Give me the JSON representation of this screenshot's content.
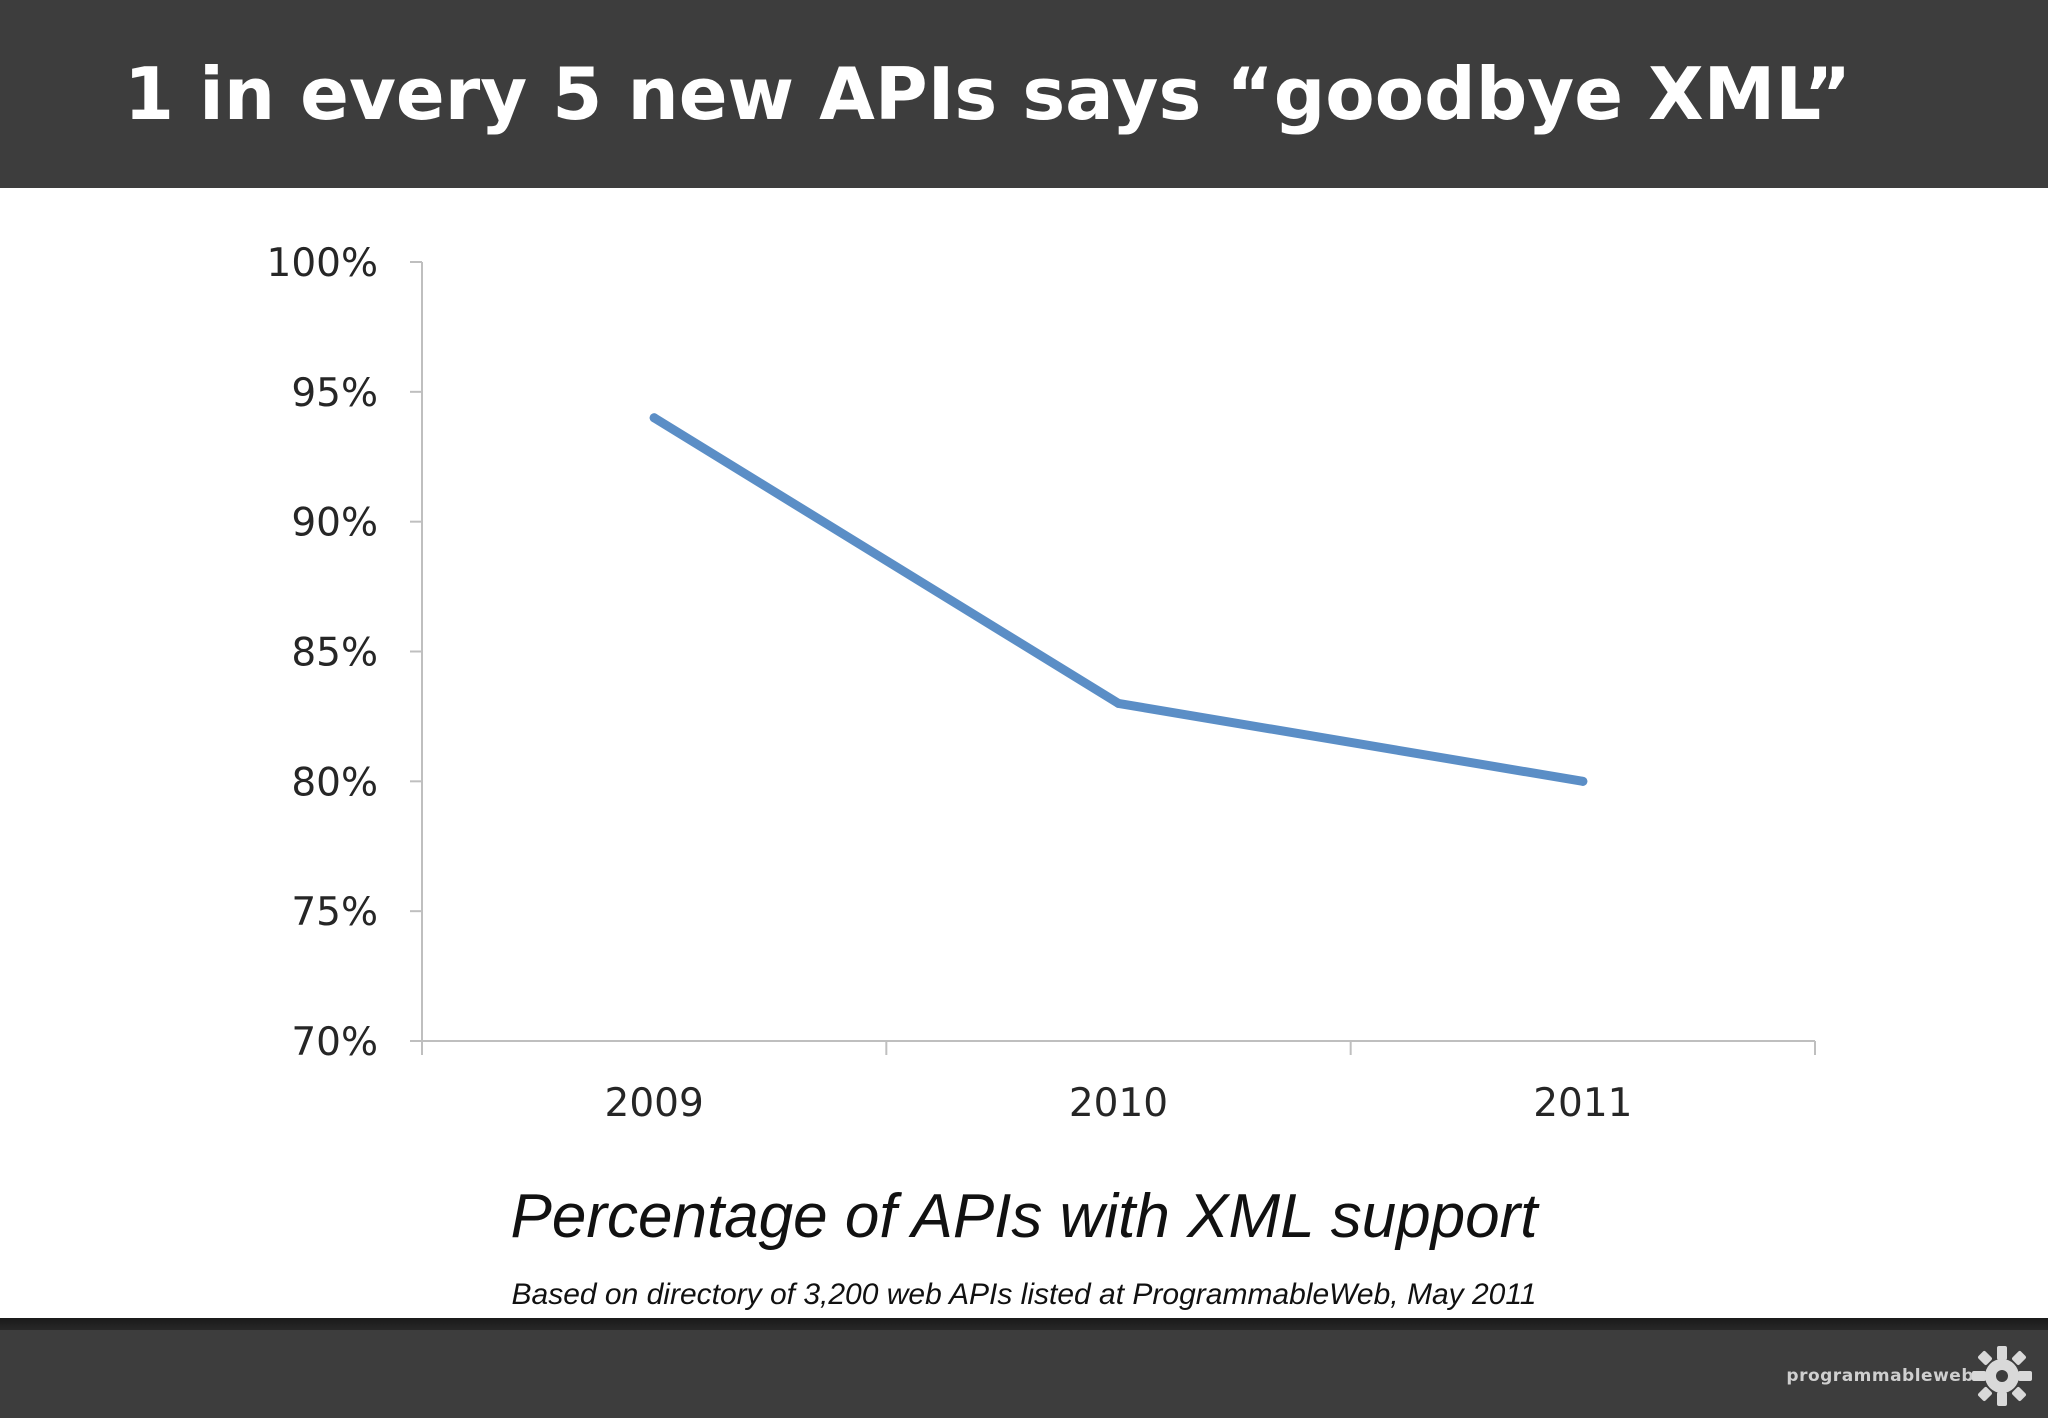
{
  "slide": {
    "title": "1 in every 5 new APIs says “goodbye XML”",
    "logo_text": "programmableweb"
  },
  "chart_data": {
    "type": "line",
    "title": "Percentage of APIs with XML support",
    "subtitle": "Based on directory of 3,200 web APIs listed at ProgrammableWeb, May 2011",
    "categories": [
      "2009",
      "2010",
      "2011"
    ],
    "series": [
      {
        "values": [
          94,
          83,
          80
        ],
        "color": "#5b8ec6"
      }
    ],
    "ylim": [
      70,
      100
    ],
    "yticks": [
      70,
      75,
      80,
      85,
      90,
      95,
      100
    ],
    "ytick_format": "{v}%",
    "grid": false,
    "legend": "none"
  },
  "colors": {
    "header_bg": "#3d3d3d",
    "line": "#5b8ec6",
    "axis": "#bfbfbf"
  }
}
